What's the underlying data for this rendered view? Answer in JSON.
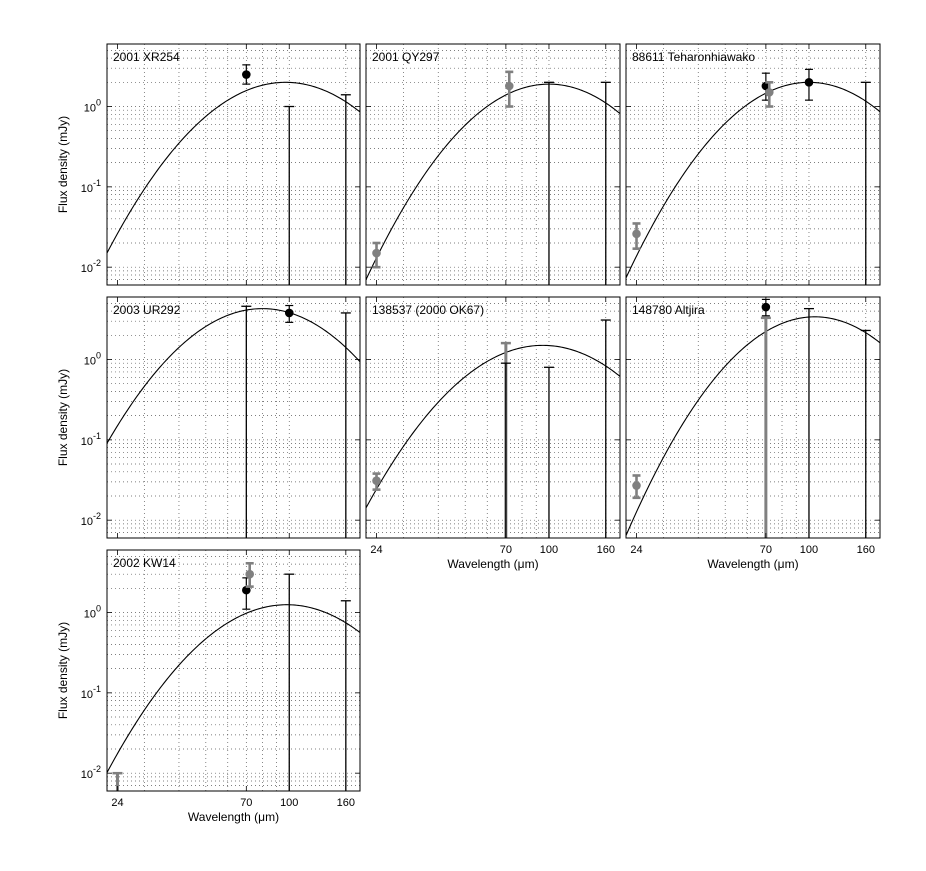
{
  "chart_data": {
    "type": "scatter",
    "x_scale": "log",
    "y_scale": "log",
    "xlim": [
      22,
      180
    ],
    "ylim": [
      0.006,
      6
    ],
    "grid": true,
    "x_ticks": [
      24,
      70,
      100,
      160
    ],
    "y_ticks": [
      0.01,
      0.1,
      1
    ],
    "y_tick_labels": [
      "10^-2",
      "10^-1",
      "10^0"
    ],
    "xlabel_prefix": "Wavelength (",
    "xlabel_unit": "μm",
    "xlabel_suffix": ")",
    "ylabel": "Flux density (mJy)",
    "colors": {
      "detection": "#000000",
      "grey_detection": "#808080",
      "upper_limit": "#808080",
      "model": "#000000"
    },
    "panels": [
      {
        "title": "2001 XR254",
        "model": {
          "peak_um": 97,
          "peak_mjy": 2.0,
          "tau_um": 48
        },
        "points": [
          {
            "x": 70,
            "y": 2.5,
            "lo": 1.9,
            "hi": 3.3,
            "color": "black"
          }
        ],
        "upper_limits": [
          {
            "x": 100,
            "y": 1.0
          },
          {
            "x": 160,
            "y": 1.4
          }
        ]
      },
      {
        "title": "2001 QY297",
        "model": {
          "peak_um": 100,
          "peak_mjy": 1.9,
          "tau_um": 45
        },
        "points": [
          {
            "x": 24,
            "y": 0.015,
            "lo": 0.01,
            "hi": 0.02,
            "color": "grey"
          },
          {
            "x": 72,
            "y": 1.8,
            "lo": 1.0,
            "hi": 2.7,
            "color": "grey"
          }
        ],
        "upper_limits": [
          {
            "x": 100,
            "y": 2.0
          },
          {
            "x": 160,
            "y": 2.0
          }
        ]
      },
      {
        "title": "88611 Teharonhiawako",
        "model": {
          "peak_um": 100,
          "peak_mjy": 2.0,
          "tau_um": 45
        },
        "points": [
          {
            "x": 24,
            "y": 0.026,
            "lo": 0.017,
            "hi": 0.035,
            "color": "grey"
          },
          {
            "x": 70,
            "y": 1.8,
            "lo": 1.2,
            "hi": 2.6,
            "color": "black"
          },
          {
            "x": 72,
            "y": 1.5,
            "lo": 1.0,
            "hi": 2.0,
            "color": "grey"
          },
          {
            "x": 100,
            "y": 2.0,
            "lo": 1.2,
            "hi": 2.9,
            "color": "black"
          }
        ],
        "upper_limits": [
          {
            "x": 160,
            "y": 2.0
          }
        ]
      },
      {
        "title": "2003 UR292",
        "model": {
          "peak_um": 80,
          "peak_mjy": 4.3,
          "tau_um": 38
        },
        "points": [
          {
            "x": 100,
            "y": 3.8,
            "lo": 2.9,
            "hi": 4.7,
            "color": "black"
          }
        ],
        "upper_limits": [
          {
            "x": 70,
            "y": 4.6
          },
          {
            "x": 160,
            "y": 3.8
          }
        ]
      },
      {
        "title": "138537 (2000 OK67)",
        "model": {
          "peak_um": 95,
          "peak_mjy": 1.5,
          "tau_um": 48
        },
        "points": [
          {
            "x": 24,
            "y": 0.031,
            "lo": 0.024,
            "hi": 0.038,
            "color": "grey"
          }
        ],
        "upper_limits": [
          {
            "x": 70,
            "y": 1.6,
            "color": "grey"
          },
          {
            "x": 70,
            "y": 0.9
          },
          {
            "x": 100,
            "y": 0.8
          },
          {
            "x": 160,
            "y": 3.1
          }
        ]
      },
      {
        "title": "148780 Altjira",
        "model": {
          "peak_um": 105,
          "peak_mjy": 3.4,
          "tau_um": 45
        },
        "points": [
          {
            "x": 24,
            "y": 0.027,
            "lo": 0.019,
            "hi": 0.036,
            "color": "grey"
          },
          {
            "x": 70,
            "y": 4.5,
            "lo": 3.5,
            "hi": 5.6,
            "color": "black"
          }
        ],
        "upper_limits": [
          {
            "x": 70,
            "y": 3.3,
            "color": "grey"
          },
          {
            "x": 100,
            "y": 4.3
          },
          {
            "x": 160,
            "y": 2.3
          }
        ]
      },
      {
        "title": "2002 KW14",
        "model": {
          "peak_um": 98,
          "peak_mjy": 1.25,
          "tau_um": 50
        },
        "points": [
          {
            "x": 70,
            "y": 1.9,
            "lo": 1.1,
            "hi": 2.7,
            "color": "black"
          },
          {
            "x": 72,
            "y": 3.0,
            "lo": 2.1,
            "hi": 4.1,
            "color": "grey"
          }
        ],
        "upper_limits": [
          {
            "x": 24,
            "y": 0.01,
            "color": "grey"
          },
          {
            "x": 100,
            "y": 3.0
          },
          {
            "x": 160,
            "y": 1.4
          }
        ]
      }
    ]
  }
}
